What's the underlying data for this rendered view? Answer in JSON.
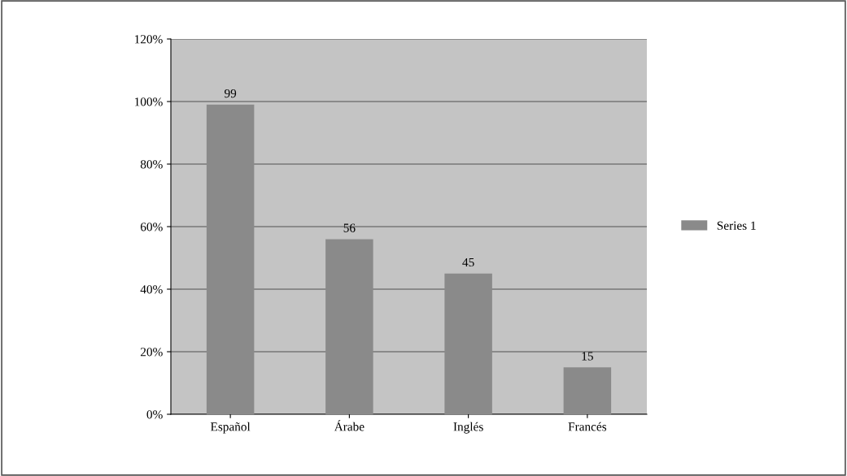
{
  "chart_data": {
    "type": "bar",
    "categories": [
      "Español",
      "Árabe",
      "Inglés",
      "Francés"
    ],
    "series": [
      {
        "name": "Series 1",
        "color": "#8a8a8a",
        "values": [
          99,
          56,
          45,
          15
        ]
      }
    ],
    "ylim": [
      0,
      120
    ],
    "yticks": [
      {
        "value": 0,
        "label": "0%"
      },
      {
        "value": 20,
        "label": "20%"
      },
      {
        "value": 40,
        "label": "40%"
      },
      {
        "value": 60,
        "label": "60%"
      },
      {
        "value": 80,
        "label": "80%"
      },
      {
        "value": 100,
        "label": "100%"
      },
      {
        "value": 120,
        "label": "120%"
      }
    ],
    "grid": "y",
    "legend": "right",
    "data_labels": true
  }
}
